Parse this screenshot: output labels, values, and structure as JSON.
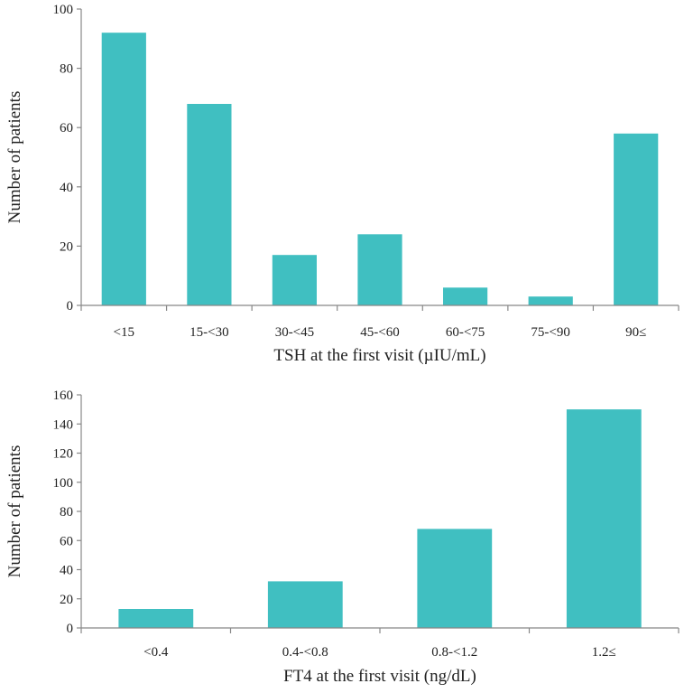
{
  "chart_data": [
    {
      "type": "bar",
      "categories": [
        "<15",
        "15-<30",
        "30-<45",
        "45-<60",
        "60-<75",
        "75-<90",
        "90≤"
      ],
      "values": [
        92,
        68,
        17,
        24,
        6,
        3,
        58
      ],
      "xlabel": "TSH at the first visit (µIU/mL)",
      "ylabel": "Number of patients",
      "ylim": [
        0,
        100
      ],
      "yticks": [
        0,
        20,
        40,
        60,
        80,
        100
      ],
      "grid": false,
      "bar_color": "#40BFC1"
    },
    {
      "type": "bar",
      "categories": [
        "<0.4",
        "0.4-<0.8",
        "0.8-<1.2",
        "1.2≤"
      ],
      "values": [
        13,
        32,
        68,
        150
      ],
      "xlabel": "FT4 at the first visit (ng/dL)",
      "ylabel": "Number of patients",
      "ylim": [
        0,
        160
      ],
      "yticks": [
        0,
        20,
        40,
        60,
        80,
        100,
        120,
        140,
        160
      ],
      "grid": false,
      "bar_color": "#40BFC1"
    }
  ]
}
